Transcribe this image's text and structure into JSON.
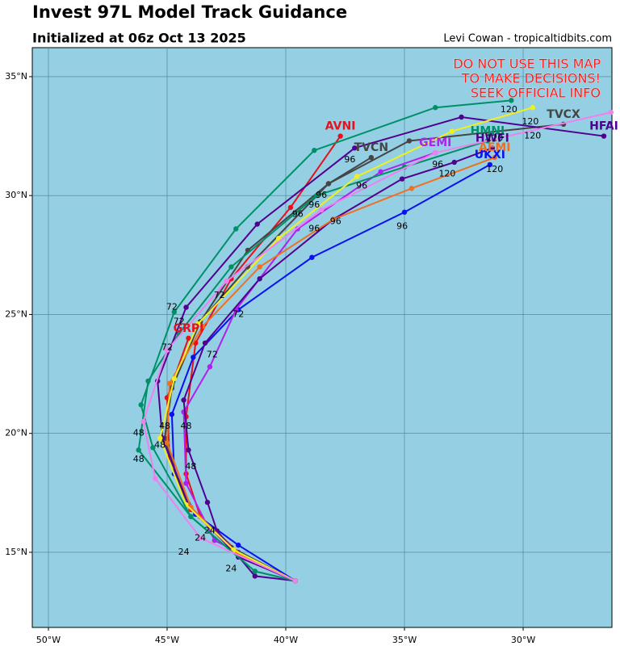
{
  "chart_data": {
    "type": "line",
    "title": "Invest 97L Model Track Guidance",
    "subtitle": "Initialized at 06z Oct 13 2025",
    "credit": "Levi Cowan - tropicaltidbits.com",
    "warning": [
      "DO NOT USE THIS MAP",
      "TO MAKE DECISIONS!",
      "SEEK OFFICIAL INFO"
    ],
    "xlim": [
      -50.68,
      -26.26
    ],
    "ylim": [
      11.84,
      36.22
    ],
    "xticks": [
      {
        "value": -50,
        "label": "50°W"
      },
      {
        "value": -45,
        "label": "45°W"
      },
      {
        "value": -40,
        "label": "40°W"
      },
      {
        "value": -35,
        "label": "35°W"
      },
      {
        "value": -30,
        "label": "30°W"
      }
    ],
    "yticks": [
      {
        "value": 15,
        "label": "15°N"
      },
      {
        "value": 20,
        "label": "20°N"
      },
      {
        "value": 25,
        "label": "25°N"
      },
      {
        "value": 30,
        "label": "30°N"
      },
      {
        "value": 35,
        "label": "35°N"
      }
    ],
    "grid": true,
    "background": "#94cfe4",
    "series": [
      {
        "name": "AVNI",
        "color": "#e8101a",
        "x": [
          -39.6,
          -42.0,
          -43.6,
          -44.2,
          -44.2,
          -43.8,
          -42.3,
          -39.8,
          -37.7
        ],
        "values": [
          13.8,
          15.0,
          16.5,
          18.3,
          20.7,
          23.8,
          26.5,
          29.5,
          32.5
        ]
      },
      {
        "name": "UKXI",
        "color": "#0a10f0",
        "x": [
          -39.6,
          -42.0,
          -43.8,
          -44.7,
          -44.8,
          -43.9,
          -42.0,
          -38.9,
          -35.0,
          -31.4
        ],
        "values": [
          13.8,
          15.3,
          16.6,
          18.3,
          20.8,
          23.2,
          25.2,
          27.4,
          29.3,
          31.3
        ]
      },
      {
        "name": "GEMI",
        "color": "#b020f0",
        "x": [
          -39.6,
          -43.0,
          -44.2,
          -44.3,
          -43.2,
          -42.1,
          -39.5,
          -36.0,
          -33.7
        ],
        "values": [
          13.8,
          15.5,
          17.9,
          20.9,
          22.8,
          25.2,
          28.6,
          31.0,
          31.8
        ]
      },
      {
        "name": "GRPI",
        "color": "#e8101a",
        "x": [
          -39.6,
          -42.2,
          -44.0,
          -44.9,
          -45.0,
          -44.1
        ],
        "values": [
          13.8,
          15.1,
          16.8,
          19.0,
          21.5,
          24.0
        ]
      },
      {
        "name": "TVCN",
        "color": "#454545",
        "x": [
          -39.6,
          -42.3,
          -44.2,
          -45.1,
          -44.8,
          -43.6,
          -41.6,
          -38.2,
          -36.4
        ],
        "values": [
          13.8,
          15.2,
          17.0,
          19.8,
          22.0,
          24.7,
          27.0,
          30.5,
          31.6
        ]
      },
      {
        "name": "TVCX",
        "color": "#454545",
        "x": [
          -39.6,
          -42.3,
          -44.2,
          -45.1,
          -44.8,
          -43.6,
          -41.6,
          -38.2,
          -34.8,
          -28.3
        ],
        "values": [
          13.8,
          15.2,
          17.0,
          19.8,
          21.9,
          24.7,
          27.7,
          30.5,
          32.3,
          33.0
        ]
      },
      {
        "name": "HMNI",
        "color": "#009068",
        "x": [
          -39.6,
          -41.3,
          -44.0,
          -46.2,
          -45.8,
          -44.5,
          -42.3,
          -38.7,
          -35.0,
          -31.5
        ],
        "values": [
          13.8,
          14.2,
          16.5,
          19.3,
          22.2,
          24.2,
          27.0,
          30.0,
          31.2,
          32.3
        ]
      },
      {
        "name": "HFAI",
        "color": "#520090",
        "x": [
          -39.6,
          -42.0,
          -44.1,
          -45.2,
          -45.4,
          -44.2,
          -41.2,
          -37.1,
          -32.6,
          -26.6
        ],
        "values": [
          13.8,
          14.8,
          17.0,
          19.8,
          22.2,
          25.3,
          28.8,
          32.0,
          33.3,
          32.5
        ]
      },
      {
        "name": "HWFI",
        "color": "#520090",
        "x": [
          -39.6,
          -41.3,
          -42.9,
          -43.3,
          -44.1,
          -44.3,
          -43.4,
          -41.1,
          -38.0,
          -35.1,
          -32.9,
          -31.3
        ],
        "values": [
          13.8,
          14.0,
          15.9,
          17.1,
          19.3,
          21.4,
          23.8,
          26.5,
          29.0,
          30.7,
          31.4,
          32.0
        ]
      },
      {
        "name": "AEMI",
        "color": "#f07020",
        "x": [
          -39.6,
          -42.1,
          -44.0,
          -45.0,
          -44.9,
          -43.5,
          -41.1,
          -38.0,
          -34.7,
          -31.2
        ],
        "values": [
          13.8,
          15.0,
          16.9,
          19.6,
          22.1,
          24.5,
          27.0,
          29.0,
          30.3,
          31.6
        ]
      },
      {
        "name": "",
        "color": "#f0f020",
        "x": [
          -39.6,
          -42.2,
          -44.2,
          -45.3,
          -44.7,
          -43.7,
          -40.3,
          -37.0,
          -33.0,
          -29.6
        ],
        "values": [
          13.8,
          15.1,
          17.0,
          19.8,
          22.3,
          24.6,
          28.2,
          30.8,
          32.7,
          33.7
        ]
      },
      {
        "name": "",
        "color": "#009068",
        "x": [
          -39.6,
          -41.3,
          -44.0,
          -45.6,
          -46.1,
          -44.7,
          -42.1,
          -38.8,
          -33.7,
          -30.5
        ],
        "values": [
          13.8,
          14.2,
          16.5,
          19.4,
          21.2,
          25.1,
          28.6,
          31.9,
          33.7,
          34.0
        ]
      },
      {
        "name": "",
        "color": "#f080f0",
        "x": [
          -39.6,
          -43.6,
          -45.5,
          -46.0,
          -45.0,
          -42.5,
          -38.5,
          -33.7,
          -26.3
        ],
        "values": [
          13.8,
          15.6,
          18.1,
          20.5,
          23.5,
          26.4,
          29.4,
          31.8,
          33.5
        ]
      }
    ],
    "annotations": [
      {
        "text": "24",
        "x": -44.3,
        "y": 15.0
      },
      {
        "text": "24",
        "x": -42.3,
        "y": 14.3
      },
      {
        "text": "24",
        "x": -43.6,
        "y": 15.6
      },
      {
        "text": "24",
        "x": -43.2,
        "y": 15.9
      },
      {
        "text": "48",
        "x": -46.2,
        "y": 20.0
      },
      {
        "text": "48",
        "x": -46.2,
        "y": 18.9
      },
      {
        "text": "48",
        "x": -45.1,
        "y": 20.3
      },
      {
        "text": "48",
        "x": -44.2,
        "y": 20.3
      },
      {
        "text": "48",
        "x": -44.0,
        "y": 18.6
      },
      {
        "text": "48",
        "x": -45.3,
        "y": 19.5
      },
      {
        "text": "72",
        "x": -45.0,
        "y": 23.6
      },
      {
        "text": "72",
        "x": -44.5,
        "y": 24.7
      },
      {
        "text": "72",
        "x": -43.1,
        "y": 23.3
      },
      {
        "text": "72",
        "x": -42.8,
        "y": 25.8
      },
      {
        "text": "72",
        "x": -42.0,
        "y": 25.0
      },
      {
        "text": "72",
        "x": -44.8,
        "y": 25.3
      },
      {
        "text": "96",
        "x": -39.5,
        "y": 29.2
      },
      {
        "text": "96",
        "x": -38.8,
        "y": 28.6
      },
      {
        "text": "96",
        "x": -38.8,
        "y": 29.6
      },
      {
        "text": "96",
        "x": -38.5,
        "y": 30.0
      },
      {
        "text": "96",
        "x": -37.9,
        "y": 28.9
      },
      {
        "text": "96",
        "x": -37.3,
        "y": 31.5
      },
      {
        "text": "96",
        "x": -36.8,
        "y": 30.4
      },
      {
        "text": "96",
        "x": -35.1,
        "y": 28.7
      },
      {
        "text": "96",
        "x": -33.6,
        "y": 31.3
      },
      {
        "text": "120",
        "x": -33.2,
        "y": 30.9
      },
      {
        "text": "120",
        "x": -30.6,
        "y": 33.6
      },
      {
        "text": "120",
        "x": -29.7,
        "y": 33.1
      },
      {
        "text": "120",
        "x": -29.6,
        "y": 32.5
      },
      {
        "text": "120",
        "x": -31.2,
        "y": 32.4
      },
      {
        "text": "120",
        "x": -31.2,
        "y": 31.1
      }
    ]
  }
}
